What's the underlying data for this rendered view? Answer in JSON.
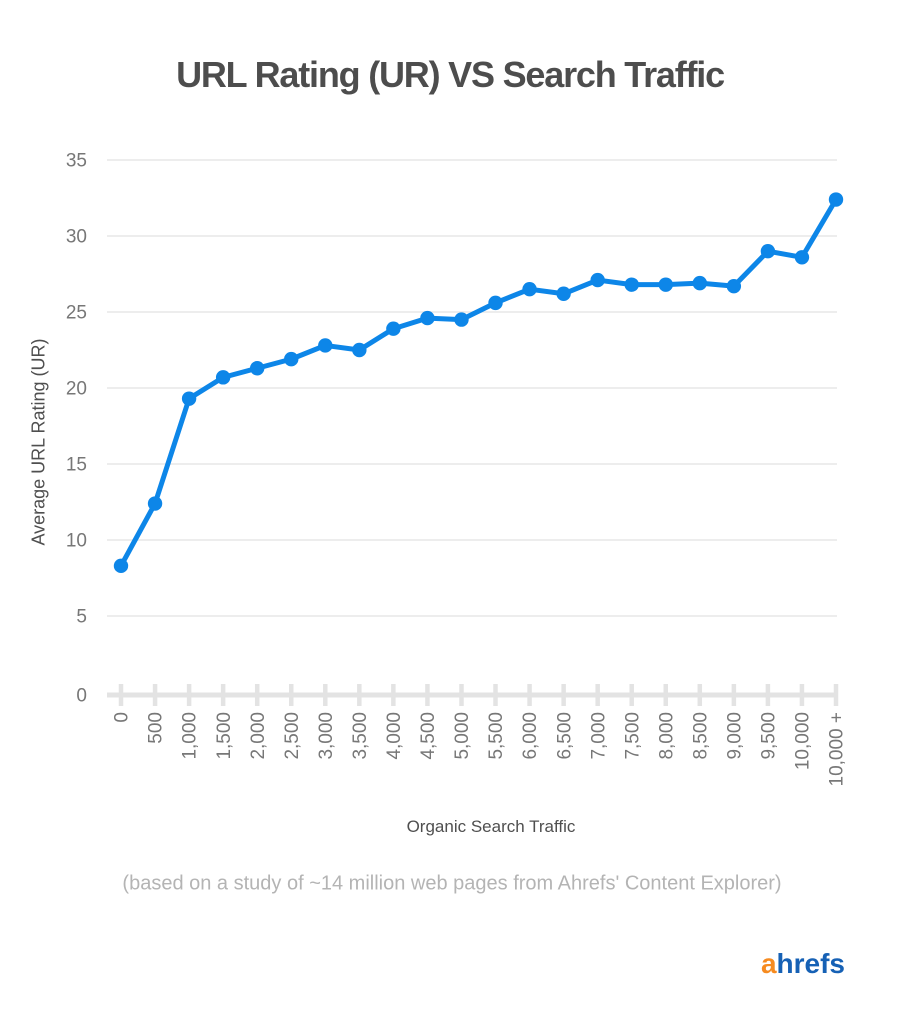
{
  "header": {
    "title": "URL Rating (UR) VS Search Traffic"
  },
  "chart_data": {
    "type": "line",
    "title": "URL Rating (UR) VS Search Traffic",
    "xlabel": "Organic Search Traffic",
    "ylabel": "Average URL Rating (UR)",
    "categories": [
      "0",
      "500",
      "1,000",
      "1,500",
      "2,000",
      "2,500",
      "3,000",
      "3,500",
      "4,000",
      "4,500",
      "5,000",
      "5,500",
      "6,000",
      "6,500",
      "7,000",
      "7,500",
      "8,000",
      "8,500",
      "9,000",
      "9,500",
      "10,000",
      "10,000 +"
    ],
    "values": [
      8.3,
      12.4,
      19.3,
      20.7,
      21.3,
      21.9,
      22.8,
      22.5,
      23.9,
      24.6,
      24.5,
      25.6,
      26.5,
      26.2,
      27.1,
      26.8,
      26.8,
      26.9,
      26.7,
      29.0,
      28.6,
      32.4
    ],
    "ylim": [
      0,
      35
    ],
    "yticks": [
      0,
      5,
      10,
      15,
      20,
      25,
      30,
      35
    ],
    "grid": true,
    "legend": "none",
    "line_color": "#0d86e8",
    "marker": "circle"
  },
  "footer": {
    "caption": "(based on a study of ~14 million web pages from Ahrefs' Content Explorer)"
  },
  "branding": {
    "logo_part1": "a",
    "logo_part2": "hrefs",
    "logo_color1": "#f68b20",
    "logo_color2": "#1661b5"
  },
  "colors": {
    "title_text": "#4d4d4d",
    "axis_title_text": "#4f4f4f",
    "tick_label_text": "#777777",
    "gridline": "#e7e7e7",
    "axis_line": "#e3e3e3",
    "caption_text": "#b4b4b4",
    "background": "#ffffff"
  }
}
